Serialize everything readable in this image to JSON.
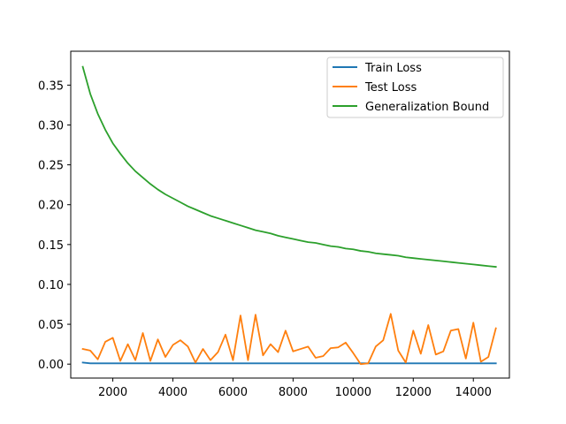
{
  "chart_data": {
    "type": "line",
    "title": "",
    "xlabel": "",
    "ylabel": "",
    "xlim": [
      600,
      15200
    ],
    "ylim": [
      -0.0175,
      0.3925
    ],
    "xticks": [
      2000,
      4000,
      6000,
      8000,
      10000,
      12000,
      14000
    ],
    "yticks": [
      0.0,
      0.05,
      0.1,
      0.15,
      0.2,
      0.25,
      0.3,
      0.35
    ],
    "ytick_labels": [
      "0.00",
      "0.05",
      "0.10",
      "0.15",
      "0.20",
      "0.25",
      "0.30",
      "0.35"
    ],
    "grid": false,
    "legend_position": "top-right",
    "x": [
      1000,
      1250,
      1500,
      1750,
      2000,
      2250,
      2500,
      2750,
      3000,
      3250,
      3500,
      3750,
      4000,
      4250,
      4500,
      4750,
      5000,
      5250,
      5500,
      5750,
      6000,
      6250,
      6500,
      6750,
      7000,
      7250,
      7500,
      7750,
      8000,
      8250,
      8500,
      8750,
      9000,
      9250,
      9500,
      9750,
      10000,
      10250,
      10500,
      10750,
      11000,
      11250,
      11500,
      11750,
      12000,
      12250,
      12500,
      12750,
      13000,
      13250,
      13500,
      13750,
      14000,
      14250,
      14500,
      14750
    ],
    "series": [
      {
        "name": "Train Loss",
        "color": "#1f77b4",
        "values": [
          0.002,
          0.001,
          0.001,
          0.001,
          0.001,
          0.001,
          0.001,
          0.001,
          0.001,
          0.001,
          0.001,
          0.001,
          0.001,
          0.001,
          0.001,
          0.001,
          0.001,
          0.001,
          0.001,
          0.001,
          0.001,
          0.001,
          0.001,
          0.001,
          0.001,
          0.001,
          0.001,
          0.001,
          0.001,
          0.001,
          0.001,
          0.001,
          0.001,
          0.001,
          0.001,
          0.001,
          0.001,
          0.001,
          0.001,
          0.001,
          0.001,
          0.001,
          0.001,
          0.001,
          0.001,
          0.001,
          0.001,
          0.001,
          0.001,
          0.001,
          0.001,
          0.001,
          0.001,
          0.001,
          0.001,
          0.001
        ]
      },
      {
        "name": "Test Loss",
        "color": "#ff7f0e",
        "values": [
          0.019,
          0.017,
          0.006,
          0.028,
          0.033,
          0.004,
          0.025,
          0.005,
          0.039,
          0.004,
          0.031,
          0.009,
          0.024,
          0.03,
          0.022,
          0.002,
          0.019,
          0.005,
          0.015,
          0.037,
          0.005,
          0.061,
          0.005,
          0.062,
          0.011,
          0.025,
          0.015,
          0.042,
          0.016,
          0.019,
          0.022,
          0.008,
          0.01,
          0.02,
          0.021,
          0.027,
          0.014,
          0.0,
          0.001,
          0.022,
          0.03,
          0.063,
          0.017,
          0.002,
          0.042,
          0.013,
          0.049,
          0.012,
          0.016,
          0.042,
          0.044,
          0.007,
          0.052,
          0.003,
          0.009,
          0.045
        ]
      },
      {
        "name": "Generalization Bound",
        "color": "#2ca02c",
        "values": [
          0.373,
          0.339,
          0.314,
          0.294,
          0.277,
          0.264,
          0.252,
          0.242,
          0.234,
          0.226,
          0.219,
          0.213,
          0.208,
          0.203,
          0.198,
          0.194,
          0.19,
          0.186,
          0.183,
          0.18,
          0.177,
          0.174,
          0.171,
          0.168,
          0.166,
          0.164,
          0.161,
          0.159,
          0.157,
          0.155,
          0.153,
          0.152,
          0.15,
          0.148,
          0.147,
          0.145,
          0.144,
          0.142,
          0.141,
          0.139,
          0.138,
          0.137,
          0.136,
          0.134,
          0.133,
          0.132,
          0.131,
          0.13,
          0.129,
          0.128,
          0.127,
          0.126,
          0.125,
          0.124,
          0.123,
          0.122
        ]
      }
    ]
  }
}
